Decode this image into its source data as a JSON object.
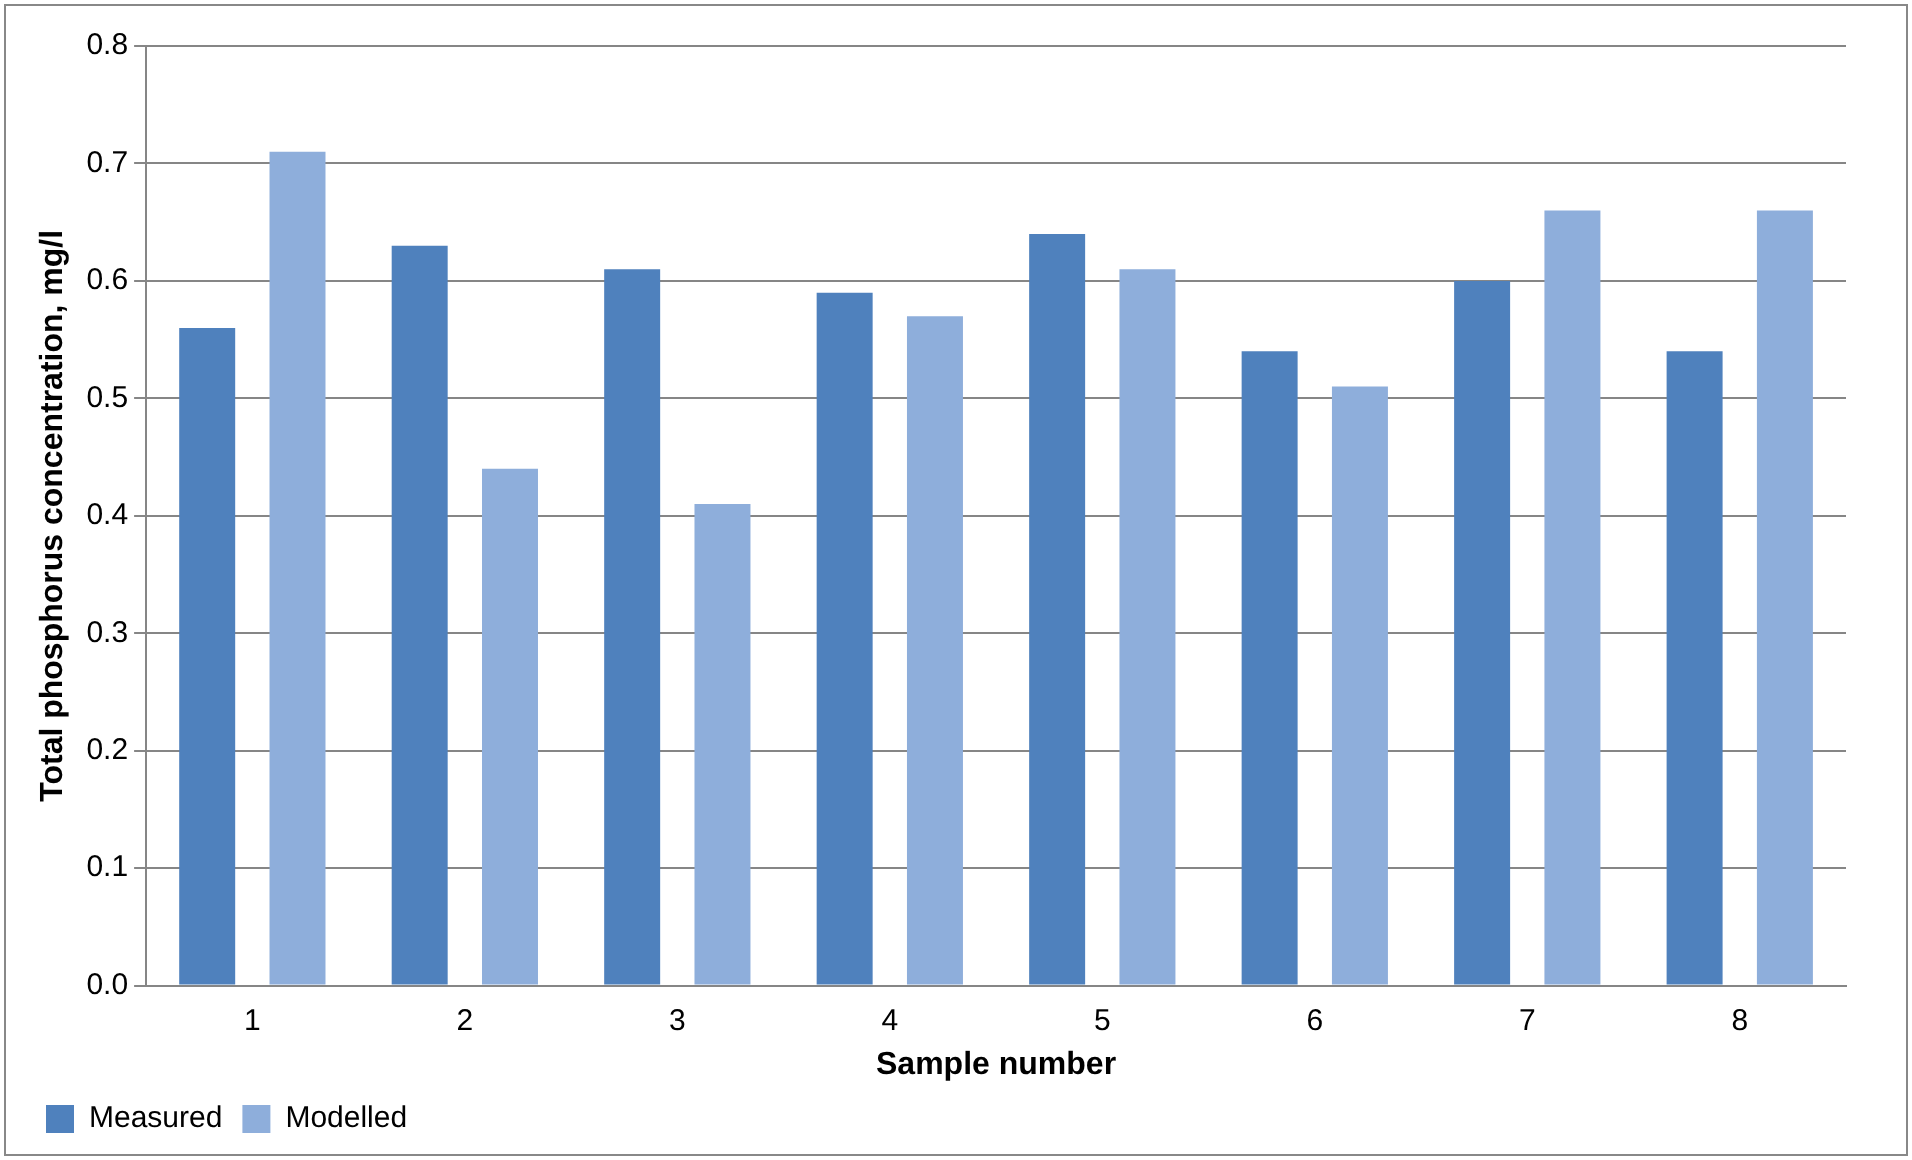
{
  "chart_data": {
    "type": "bar",
    "xlabel": "Sample number",
    "ylabel": "Total phosphorus concentration, mg/l",
    "categories": [
      "1",
      "2",
      "3",
      "4",
      "5",
      "6",
      "7",
      "8"
    ],
    "series": [
      {
        "name": "Measured",
        "color": "#4f81bd",
        "values": [
          0.56,
          0.63,
          0.61,
          0.59,
          0.64,
          0.54,
          0.6,
          0.54
        ]
      },
      {
        "name": "Modelled",
        "color": "#8eaedb",
        "values": [
          0.71,
          0.44,
          0.41,
          0.57,
          0.61,
          0.51,
          0.66,
          0.66
        ]
      }
    ],
    "ylim": [
      0,
      0.8
    ],
    "yticks": [
      {
        "value": 0,
        "label": "0.0"
      },
      {
        "value": 0.1,
        "label": "0.1"
      },
      {
        "value": 0.2,
        "label": "0.2"
      },
      {
        "value": 0.3,
        "label": "0.3"
      },
      {
        "value": 0.4,
        "label": "0.4"
      },
      {
        "value": 0.5,
        "label": "0.5"
      },
      {
        "value": 0.6,
        "label": "0.6"
      },
      {
        "value": 0.7,
        "label": "0.7"
      },
      {
        "value": 0.8,
        "label": "0.8"
      }
    ],
    "grid": "y",
    "legend": "bottom left"
  }
}
